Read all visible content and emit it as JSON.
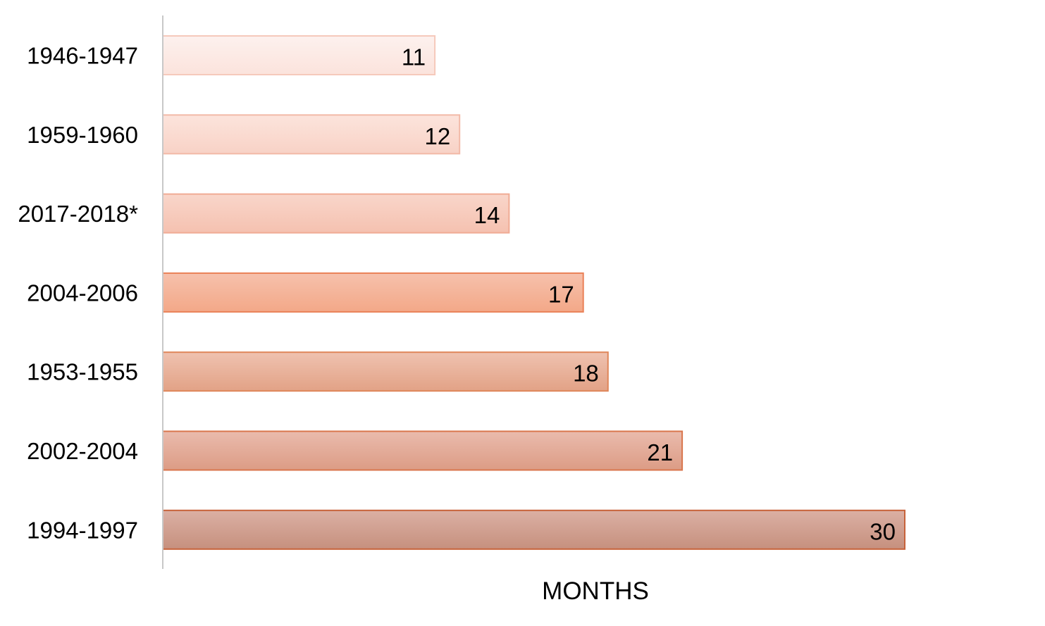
{
  "chart_data": {
    "type": "bar",
    "orientation": "horizontal",
    "categories": [
      "1946-1947",
      "1959-1960",
      "2017-2018*",
      "2004-2006",
      "1953-1955",
      "2002-2004",
      "1994-1997"
    ],
    "values": [
      11,
      12,
      14,
      17,
      18,
      21,
      30
    ],
    "title": "",
    "xlabel": "MONTHS",
    "ylabel": "",
    "xlim": [
      0,
      30
    ],
    "grid": false,
    "legend": "none",
    "data_labels": true,
    "bar_colors": [
      [
        "#fdf1ee",
        "#fbe3dc"
      ],
      [
        "#fce4dc",
        "#f8d2c6"
      ],
      [
        "#f9d6ca",
        "#f5c1b0"
      ],
      [
        "#f6c1ac",
        "#f3a888"
      ],
      [
        "#efc2b0",
        "#e2a286"
      ],
      [
        "#eabbad",
        "#dc9c85"
      ],
      [
        "#dbb0a4",
        "#c6907e"
      ]
    ],
    "bar_border_colors": [
      "#f5c9bb",
      "#f2baa8",
      "#f0ab94",
      "#ea8157",
      "#df8659",
      "#d9764d",
      "#c7623a"
    ],
    "axis_color": "#c8c8c8"
  }
}
